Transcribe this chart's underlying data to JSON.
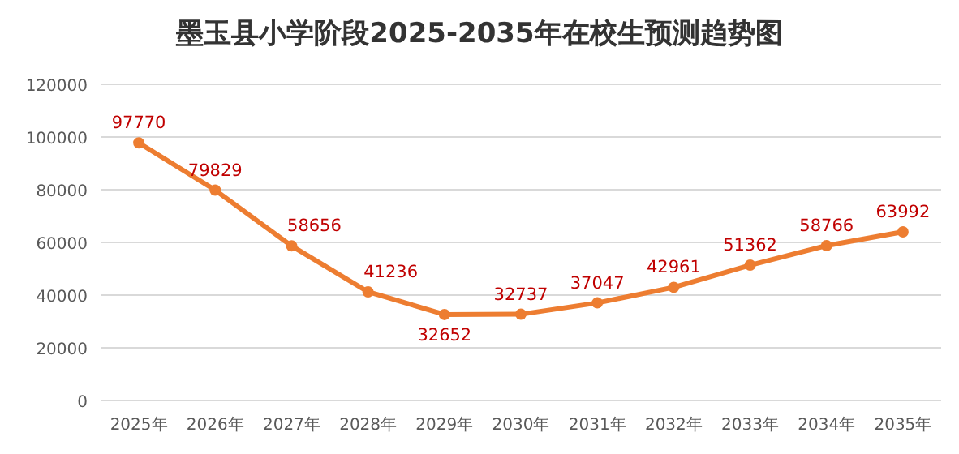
{
  "chart_data": {
    "type": "line",
    "title": "墨玉县小学阶段2025-2035年在校生预测趋势图",
    "categories": [
      "2025年",
      "2026年",
      "2027年",
      "2028年",
      "2029年",
      "2030年",
      "2031年",
      "2032年",
      "2033年",
      "2034年",
      "2035年"
    ],
    "series": [
      {
        "color": "#ed7d31",
        "values": [
          97770,
          79829,
          58656,
          41236,
          32652,
          32737,
          37047,
          42961,
          51362,
          58766,
          63992
        ]
      }
    ],
    "ylim": [
      0,
      120000
    ],
    "yticks": [
      0,
      20000,
      40000,
      60000,
      80000,
      100000,
      120000
    ],
    "grid": "y",
    "marker": "circle",
    "data_labels": true
  }
}
